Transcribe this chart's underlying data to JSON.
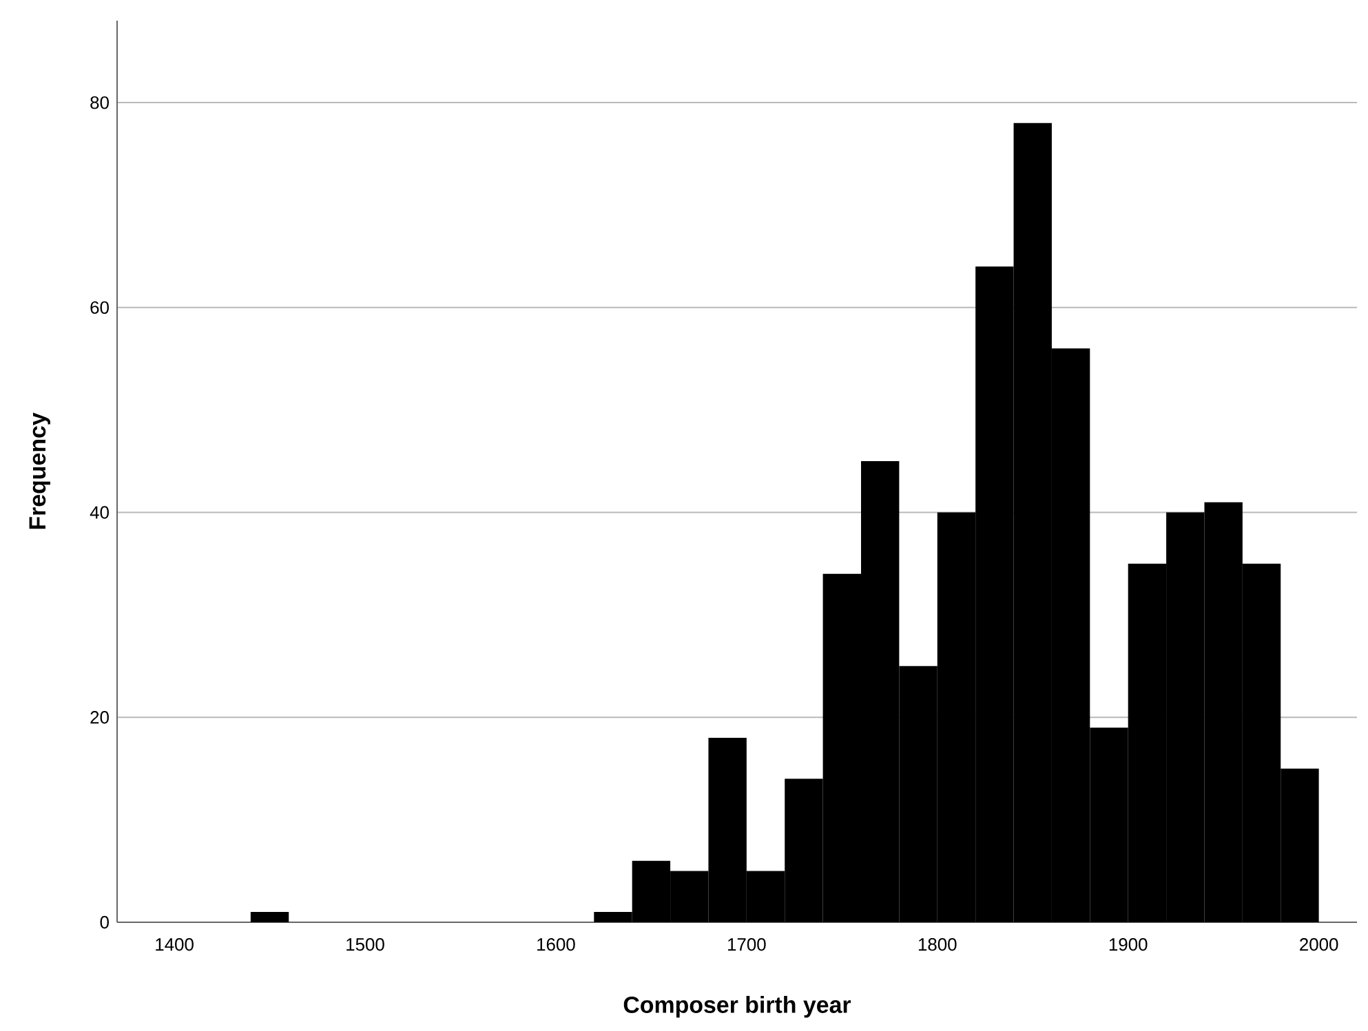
{
  "chart_data": {
    "type": "histogram",
    "xlabel": "Composer birth year",
    "ylabel": "Frequency",
    "bins": [
      1440,
      1460,
      1480,
      1500,
      1520,
      1540,
      1560,
      1580,
      1600,
      1620,
      1640,
      1660,
      1680,
      1700,
      1720,
      1740,
      1760,
      1780,
      1800,
      1820,
      1840,
      1860,
      1880,
      1900,
      1920,
      1940,
      1960,
      1980,
      2000
    ],
    "values": [
      1,
      0,
      0,
      0,
      0,
      0,
      0,
      0,
      0,
      1,
      6,
      5,
      18,
      5,
      14,
      34,
      45,
      25,
      40,
      64,
      78,
      56,
      19,
      35,
      40,
      41,
      35,
      15
    ],
    "color": "#000000",
    "xlim": [
      1370,
      2020
    ],
    "ylim": [
      0,
      88
    ],
    "xticks": [
      1400,
      1500,
      1600,
      1700,
      1800,
      1900,
      2000
    ],
    "yticks": [
      0,
      20,
      40,
      60,
      80
    ],
    "grid": "y"
  }
}
